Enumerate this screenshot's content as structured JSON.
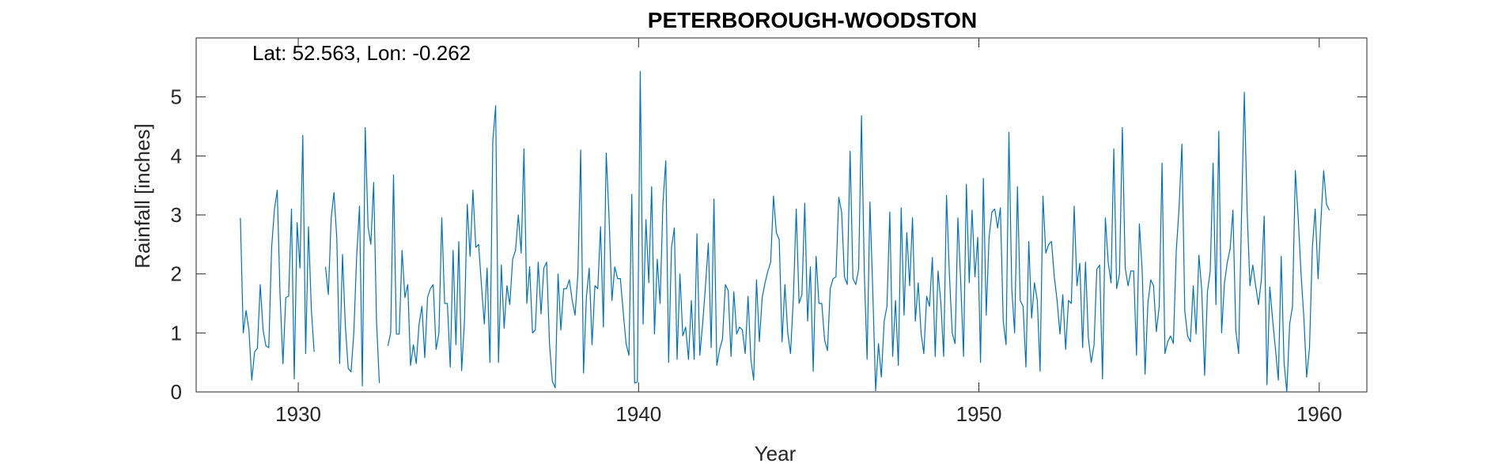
{
  "chart_data": {
    "type": "line",
    "title": "PETERBOROUGH-WOODSTON",
    "annotation": "Lat: 52.563, Lon: -0.262",
    "xlabel": "Year",
    "ylabel": "Rainfall [inches]",
    "xlim": [
      1927,
      1961.4
    ],
    "ylim": [
      0,
      6
    ],
    "xticks": [
      1930,
      1940,
      1950,
      1960
    ],
    "yticks": [
      0,
      1,
      2,
      3,
      4,
      5
    ],
    "grid": false,
    "line_color": "#0072BD",
    "x_start": 1928.3,
    "x_step": 0.08333,
    "values": [
      2.95,
      1.0,
      1.38,
      1.05,
      0.2,
      0.68,
      0.74,
      1.82,
      1.05,
      0.78,
      0.75,
      2.45,
      3.1,
      3.42,
      1.62,
      0.48,
      1.6,
      1.62,
      3.1,
      0.22,
      2.87,
      2.1,
      4.35,
      0.65,
      2.8,
      1.4,
      0.68,
      null,
      null,
      null,
      2.12,
      1.65,
      2.95,
      3.38,
      2.6,
      0.48,
      2.33,
      1.12,
      0.4,
      0.34,
      1.0,
      2.3,
      3.15,
      0.1,
      4.48,
      2.8,
      2.5,
      3.55,
      1.2,
      0.15,
      null,
      null,
      0.78,
      1.0,
      3.68,
      0.98,
      0.98,
      2.4,
      1.6,
      1.82,
      0.45,
      0.8,
      0.48,
      1.15,
      1.45,
      0.58,
      1.6,
      1.75,
      1.82,
      0.72,
      1.0,
      2.95,
      1.5,
      1.5,
      0.42,
      2.4,
      0.8,
      2.55,
      0.36,
      1.2,
      3.18,
      2.3,
      3.42,
      2.45,
      2.5,
      1.8,
      1.15,
      2.1,
      0.5,
      4.25,
      4.85,
      0.5,
      2.15,
      1.08,
      1.8,
      1.48,
      2.25,
      2.4,
      3.0,
      2.35,
      4.12,
      1.5,
      2.12,
      1.0,
      1.05,
      2.2,
      1.32,
      2.1,
      2.2,
      0.82,
      0.18,
      0.07,
      2.0,
      1.05,
      1.75,
      1.75,
      1.9,
      1.55,
      1.3,
      2.0,
      4.1,
      0.32,
      1.6,
      2.1,
      0.8,
      1.8,
      1.75,
      2.8,
      1.1,
      4.05,
      2.95,
      1.55,
      2.12,
      1.92,
      1.92,
      1.35,
      0.82,
      0.62,
      3.35,
      0.15,
      0.17,
      5.43,
      1.15,
      2.92,
      1.85,
      3.48,
      0.98,
      2.25,
      1.5,
      3.2,
      3.92,
      0.5,
      2.45,
      2.78,
      0.55,
      2.0,
      0.95,
      1.1,
      0.55,
      1.55,
      0.55,
      2.68,
      0.62,
      1.15,
      1.8,
      2.52,
      0.75,
      3.27,
      0.45,
      0.72,
      0.9,
      1.82,
      1.72,
      0.6,
      1.7,
      0.98,
      1.1,
      1.05,
      0.65,
      1.62,
      0.55,
      0.2,
      1.9,
      0.85,
      1.6,
      1.85,
      2.05,
      2.2,
      3.32,
      2.7,
      2.58,
      0.85,
      1.82,
      1.0,
      0.65,
      1.6,
      3.1,
      1.5,
      1.65,
      3.2,
      1.2,
      2.12,
      0.35,
      2.3,
      1.5,
      1.5,
      0.88,
      0.7,
      1.75,
      1.92,
      1.95,
      3.3,
      3.05,
      1.95,
      1.82,
      4.08,
      1.92,
      1.82,
      2.08,
      4.68,
      2.0,
      0.55,
      3.22,
      1.7,
      0.02,
      0.82,
      0.25,
      1.2,
      1.45,
      3.05,
      0.6,
      1.55,
      0.45,
      3.12,
      1.3,
      2.7,
      1.8,
      2.95,
      1.2,
      1.85,
      1.0,
      0.65,
      1.62,
      1.45,
      2.28,
      0.6,
      2.05,
      1.5,
      0.6,
      3.33,
      2.0,
      1.0,
      0.82,
      2.95,
      1.85,
      0.6,
      3.52,
      1.85,
      3.08,
      1.95,
      2.62,
      0.5,
      3.62,
      1.3,
      2.62,
      3.05,
      3.1,
      2.78,
      3.12,
      1.2,
      0.8,
      4.4,
      1.75,
      1.0,
      3.48,
      1.55,
      1.45,
      0.42,
      2.55,
      1.25,
      1.85,
      1.55,
      0.35,
      3.32,
      2.35,
      2.5,
      2.55,
      1.95,
      1.55,
      0.98,
      1.65,
      0.72,
      1.55,
      1.5,
      3.15,
      1.8,
      2.18,
      0.75,
      2.2,
      0.92,
      0.5,
      0.8,
      2.08,
      2.15,
      0.22,
      2.95,
      2.2,
      1.85,
      4.12,
      1.75,
      2.0,
      4.48,
      2.1,
      1.8,
      2.05,
      2.05,
      0.62,
      2.85,
      2.05,
      0.3,
      1.5,
      1.9,
      1.8,
      1.02,
      1.45,
      3.88,
      0.65,
      0.85,
      0.95,
      0.82,
      2.38,
      3.12,
      4.2,
      1.38,
      0.95,
      0.85,
      1.8,
      0.98,
      2.32,
      1.72,
      0.28,
      1.7,
      2.05,
      3.88,
      1.48,
      4.42,
      1.0,
      1.85,
      2.2,
      2.42,
      3.08,
      1.05,
      0.65,
      2.95,
      5.08,
      3.05,
      1.8,
      2.15,
      1.8,
      1.48,
      1.9,
      2.98,
      0.12,
      1.78,
      1.22,
      0.72,
      0.2,
      2.3,
      0.5,
      0.0,
      1.15,
      1.45,
      3.75,
      2.95,
      2.0,
      1.25,
      0.25,
      0.75,
      2.45,
      3.1,
      1.92,
      2.9,
      3.75,
      3.18,
      3.08
    ]
  }
}
